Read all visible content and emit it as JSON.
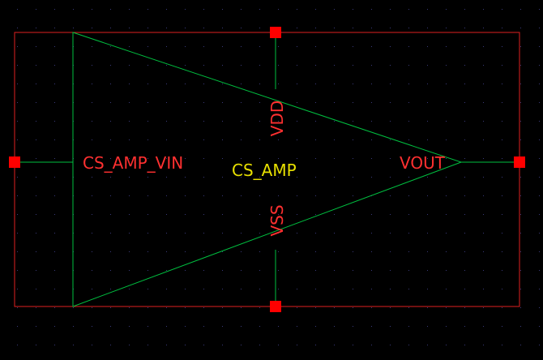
{
  "schematic": {
    "cell_name": "CS_AMP",
    "pins": {
      "input": "CS_AMP_VIN",
      "output": "VOUT",
      "supply": "VDD",
      "ground": "VSS"
    }
  },
  "colors": {
    "background": "#000000",
    "grid_dot": "#3a3a7a",
    "symbol_body": "#00c040",
    "bounding_box": "#e02020",
    "pin_marker": "#ff0000",
    "pin_label": "#ff3030",
    "cell_name": "#e8e000"
  },
  "icons": {
    "pin": "square-pin-marker"
  }
}
